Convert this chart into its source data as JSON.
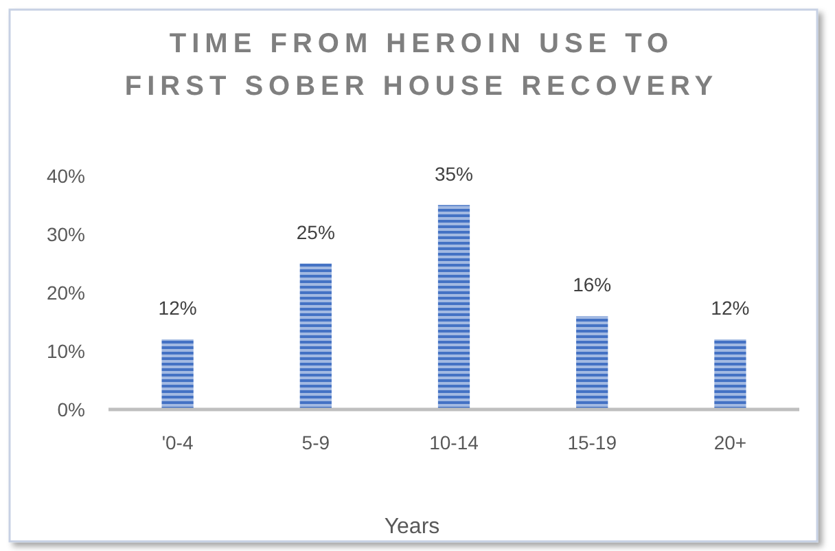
{
  "chart_data": {
    "type": "bar",
    "title": "TIME FROM HEROIN USE TO FIRST SOBER HOUSE RECOVERY",
    "xlabel": "Years",
    "categories": [
      "'0-4",
      "5-9",
      "10-14",
      "15-19",
      "20+"
    ],
    "values": [
      12,
      25,
      35,
      16,
      12
    ],
    "color": "#4472c4",
    "value_labels": [
      "12%",
      "25%",
      "35%",
      "16%",
      "12%"
    ],
    "ylim": [
      0,
      40
    ],
    "yticks": [
      {
        "value": 0,
        "label": "0%"
      },
      {
        "value": 10,
        "label": "10%"
      },
      {
        "value": 20,
        "label": "20%"
      },
      {
        "value": 30,
        "label": "30%"
      },
      {
        "value": 40,
        "label": "40%"
      }
    ]
  }
}
